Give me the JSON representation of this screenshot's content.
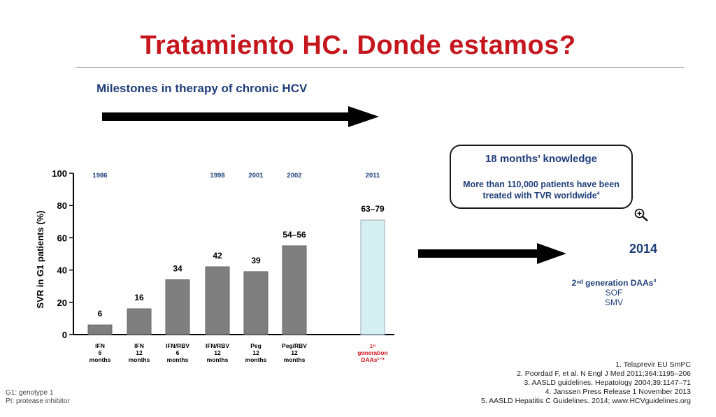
{
  "title": "Tratamiento HC.  Donde estamos?",
  "subtitle": "Milestones in therapy of chronic HCV",
  "callout": {
    "heading": "18 months’ knowledge",
    "body": "More than 110,000 patients have been treated with TVR worldwide",
    "body_sup": "4"
  },
  "year_2014": "2014",
  "daas": {
    "heading": "2ⁿᵈ generation DAAs",
    "heading_sup": "4",
    "items": [
      "SOF",
      "SMV"
    ]
  },
  "footnotes_left": [
    "G1: genotype 1",
    "PI: protease inhibitor"
  ],
  "references": [
    "1. Telaprevir EU SmPC",
    "2. Poordad F, et al. N Engl J Med 2011;364:1195–206",
    "3. AASLD guidelines. Hepatology 2004;39:1147–71",
    "4. Janssen Press Release 1 November 2013",
    "5. AASLD Hepatitis C Guidelines. 2014; www.HCVguidelines.org"
  ],
  "icons": [
    "zoom-in-icon",
    "right-arrow-icon"
  ],
  "colors": {
    "title": "#c4161c",
    "navy": "#1f3f7a",
    "bar": "#7f7f7f",
    "bar_highlight": "#d6eff1",
    "daa_label": "#d0161c"
  },
  "chart_data": {
    "type": "bar",
    "ylabel": "SVR in G1 patients (%)",
    "ylim": [
      0,
      100
    ],
    "yticks": [
      "0",
      "20",
      "40",
      "60",
      "80",
      "100"
    ],
    "grid": false,
    "categories": [
      [
        "IFN",
        "6",
        "months"
      ],
      [
        "IFN",
        "12",
        "months"
      ],
      [
        "IFN/RBV",
        "6",
        "months"
      ],
      [
        "IFN/RBV",
        "12",
        "months"
      ],
      [
        "Peg",
        "12",
        "months"
      ],
      [
        "Peg/RBV",
        "12",
        "months"
      ],
      [
        "1ˢᵗ",
        "generation",
        "DAAs¹⁻³"
      ]
    ],
    "values": [
      6,
      16,
      34,
      42,
      39,
      55,
      71
    ],
    "value_labels": [
      "6",
      "16",
      "34",
      "42",
      "39",
      "54–56",
      "63–79"
    ],
    "years": [
      "1986",
      "",
      "",
      "1998",
      "2001",
      "2002",
      "2011"
    ],
    "highlight_index": 6
  }
}
